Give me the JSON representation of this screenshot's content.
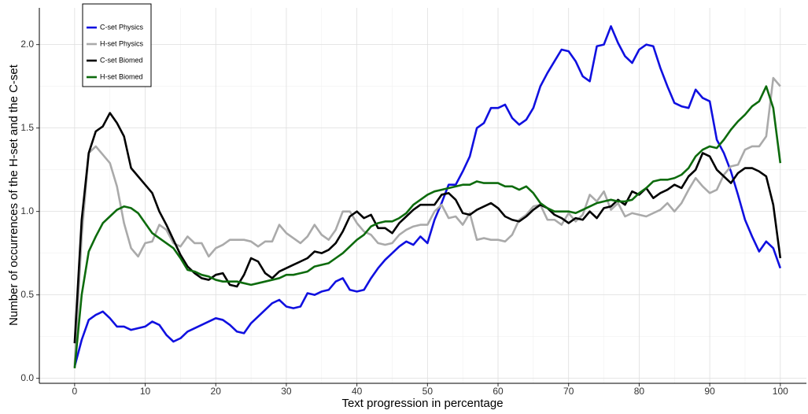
{
  "chart_data": {
    "type": "line",
    "xlabel": "Text progression in percentage",
    "ylabel": "Number of occurrences of the H-set and the C-set",
    "x": [
      0,
      1,
      2,
      3,
      4,
      5,
      6,
      7,
      8,
      9,
      10,
      11,
      12,
      13,
      14,
      15,
      16,
      17,
      18,
      19,
      20,
      21,
      22,
      23,
      24,
      25,
      26,
      27,
      28,
      29,
      30,
      31,
      32,
      33,
      34,
      35,
      36,
      37,
      38,
      39,
      40,
      41,
      42,
      43,
      44,
      45,
      46,
      47,
      48,
      49,
      50,
      51,
      52,
      53,
      54,
      55,
      56,
      57,
      58,
      59,
      60,
      61,
      62,
      63,
      64,
      65,
      66,
      67,
      68,
      69,
      70,
      71,
      72,
      73,
      74,
      75,
      76,
      77,
      78,
      79,
      80,
      81,
      82,
      83,
      84,
      85,
      86,
      87,
      88,
      89,
      90,
      91,
      92,
      93,
      94,
      95,
      96,
      97,
      98,
      99,
      100
    ],
    "series": [
      {
        "name": "C-set Physics",
        "color": "#1010e0",
        "values": [
          0.07,
          0.23,
          0.35,
          0.38,
          0.4,
          0.36,
          0.31,
          0.31,
          0.29,
          0.3,
          0.31,
          0.34,
          0.32,
          0.26,
          0.22,
          0.24,
          0.28,
          0.3,
          0.32,
          0.34,
          0.36,
          0.35,
          0.32,
          0.28,
          0.27,
          0.33,
          0.37,
          0.41,
          0.45,
          0.47,
          0.43,
          0.42,
          0.43,
          0.51,
          0.5,
          0.52,
          0.53,
          0.58,
          0.6,
          0.53,
          0.52,
          0.53,
          0.6,
          0.66,
          0.71,
          0.75,
          0.79,
          0.82,
          0.8,
          0.85,
          0.81,
          0.95,
          1.05,
          1.16,
          1.16,
          1.24,
          1.33,
          1.5,
          1.53,
          1.62,
          1.62,
          1.64,
          1.56,
          1.52,
          1.55,
          1.62,
          1.75,
          1.83,
          1.9,
          1.97,
          1.96,
          1.9,
          1.81,
          1.78,
          1.99,
          2.0,
          2.11,
          2.01,
          1.93,
          1.89,
          1.97,
          2.0,
          1.99,
          1.86,
          1.75,
          1.65,
          1.63,
          1.62,
          1.73,
          1.68,
          1.66,
          1.43,
          1.35,
          1.24,
          1.1,
          0.95,
          0.85,
          0.76,
          0.82,
          0.78,
          0.66
        ]
      },
      {
        "name": "H-set Physics",
        "color": "#aaaaaa",
        "values": [
          0.08,
          0.85,
          1.35,
          1.39,
          1.34,
          1.29,
          1.15,
          0.93,
          0.78,
          0.73,
          0.81,
          0.82,
          0.92,
          0.89,
          0.81,
          0.79,
          0.85,
          0.81,
          0.81,
          0.73,
          0.78,
          0.8,
          0.83,
          0.83,
          0.83,
          0.82,
          0.79,
          0.82,
          0.82,
          0.92,
          0.87,
          0.84,
          0.81,
          0.85,
          0.92,
          0.86,
          0.83,
          0.89,
          1.0,
          1.0,
          0.93,
          0.88,
          0.86,
          0.81,
          0.8,
          0.81,
          0.86,
          0.89,
          0.91,
          0.92,
          0.92,
          1.0,
          1.04,
          0.96,
          0.97,
          0.92,
          0.99,
          0.83,
          0.84,
          0.83,
          0.83,
          0.82,
          0.86,
          0.95,
          0.98,
          1.03,
          1.04,
          0.95,
          0.95,
          0.92,
          0.99,
          0.94,
          0.98,
          1.1,
          1.06,
          1.12,
          1.01,
          1.05,
          0.97,
          0.99,
          0.98,
          0.97,
          0.99,
          1.01,
          1.05,
          1.0,
          1.05,
          1.13,
          1.2,
          1.15,
          1.11,
          1.13,
          1.22,
          1.27,
          1.28,
          1.37,
          1.39,
          1.39,
          1.45,
          1.8,
          1.75
        ]
      },
      {
        "name": "C-set Biomed",
        "color": "#000000",
        "values": [
          0.21,
          0.95,
          1.35,
          1.48,
          1.51,
          1.59,
          1.53,
          1.45,
          1.26,
          1.21,
          1.16,
          1.11,
          1.0,
          0.92,
          0.83,
          0.74,
          0.67,
          0.63,
          0.6,
          0.59,
          0.62,
          0.63,
          0.56,
          0.55,
          0.62,
          0.72,
          0.7,
          0.63,
          0.6,
          0.64,
          0.66,
          0.68,
          0.7,
          0.72,
          0.76,
          0.75,
          0.77,
          0.81,
          0.88,
          0.97,
          1.0,
          0.96,
          0.98,
          0.9,
          0.9,
          0.87,
          0.93,
          0.97,
          1.01,
          1.04,
          1.04,
          1.04,
          1.1,
          1.11,
          1.07,
          0.99,
          0.98,
          1.01,
          1.03,
          1.05,
          1.02,
          0.97,
          0.95,
          0.94,
          0.97,
          1.01,
          1.04,
          1.02,
          0.98,
          0.96,
          0.93,
          0.96,
          0.95,
          1.0,
          0.96,
          1.02,
          1.03,
          1.07,
          1.04,
          1.12,
          1.1,
          1.14,
          1.08,
          1.11,
          1.13,
          1.16,
          1.14,
          1.21,
          1.25,
          1.35,
          1.33,
          1.25,
          1.21,
          1.17,
          1.23,
          1.26,
          1.26,
          1.24,
          1.21,
          1.04,
          0.72
        ]
      },
      {
        "name": "H-set Biomed",
        "color": "#0d6b0d",
        "values": [
          0.06,
          0.5,
          0.76,
          0.85,
          0.93,
          0.97,
          1.01,
          1.03,
          1.02,
          0.99,
          0.93,
          0.87,
          0.84,
          0.81,
          0.78,
          0.72,
          0.65,
          0.64,
          0.62,
          0.61,
          0.59,
          0.58,
          0.58,
          0.58,
          0.57,
          0.56,
          0.57,
          0.58,
          0.59,
          0.6,
          0.62,
          0.62,
          0.63,
          0.64,
          0.67,
          0.68,
          0.69,
          0.72,
          0.75,
          0.79,
          0.83,
          0.86,
          0.91,
          0.93,
          0.94,
          0.94,
          0.96,
          0.99,
          1.04,
          1.07,
          1.1,
          1.12,
          1.13,
          1.14,
          1.15,
          1.16,
          1.16,
          1.18,
          1.17,
          1.17,
          1.17,
          1.15,
          1.15,
          1.13,
          1.15,
          1.11,
          1.05,
          1.02,
          1.0,
          1.0,
          1.0,
          0.99,
          1.01,
          1.03,
          1.05,
          1.06,
          1.07,
          1.06,
          1.06,
          1.07,
          1.11,
          1.14,
          1.18,
          1.19,
          1.19,
          1.2,
          1.22,
          1.26,
          1.33,
          1.37,
          1.39,
          1.38,
          1.43,
          1.49,
          1.54,
          1.58,
          1.63,
          1.66,
          1.75,
          1.62,
          1.29
        ]
      }
    ],
    "xlim": [
      -5,
      103.7
    ],
    "ylim": [
      -0.03,
      2.22
    ],
    "xticks": [
      0,
      10,
      20,
      30,
      40,
      50,
      60,
      70,
      80,
      90,
      100
    ],
    "yticks": [
      {
        "value": 0,
        "label": "0.0"
      },
      0.5,
      {
        "value": 1,
        "label": "1.0"
      },
      1.5,
      {
        "value": 2,
        "label": "2.0"
      }
    ],
    "x_minor_ticks": [
      5,
      15,
      25,
      35,
      45,
      55,
      65,
      75,
      85,
      95
    ],
    "y_minor_ticks": [
      0.25,
      0.75,
      1.25,
      1.75
    ],
    "grid": true,
    "legend": "top-left"
  }
}
